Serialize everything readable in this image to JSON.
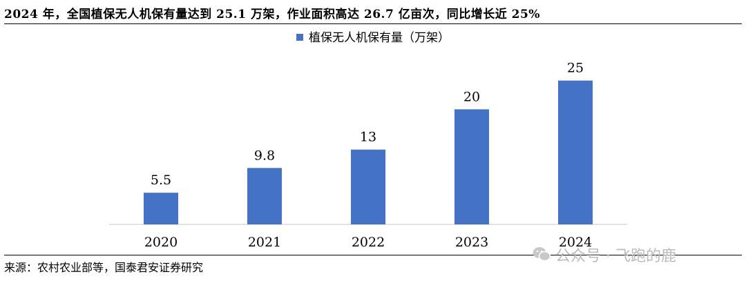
{
  "title": "2024 年，全国植保无人机保有量达到 25.1 万架，作业面积高达 26.7 亿亩次，同比增长近 25%",
  "source": "来源：农村农业部等，国泰君安证券研究",
  "watermark": "公众号 · 飞跑的鹿",
  "colors": {
    "bar": "#4472C4",
    "axis": "#d9d9d9",
    "rule": "#000000",
    "watermark": "#bbbbbb"
  },
  "chart_data": {
    "type": "bar",
    "categories": [
      "2020",
      "2021",
      "2022",
      "2023",
      "2024"
    ],
    "series": [
      {
        "name": "植保无人机保有量（万架）",
        "values": [
          5.5,
          9.8,
          13,
          20,
          25
        ]
      }
    ],
    "data_labels": [
      "5.5",
      "9.8",
      "13",
      "20",
      "25"
    ],
    "legend_position": "top-center",
    "ylim": [
      0,
      27.6
    ],
    "grid": false
  }
}
